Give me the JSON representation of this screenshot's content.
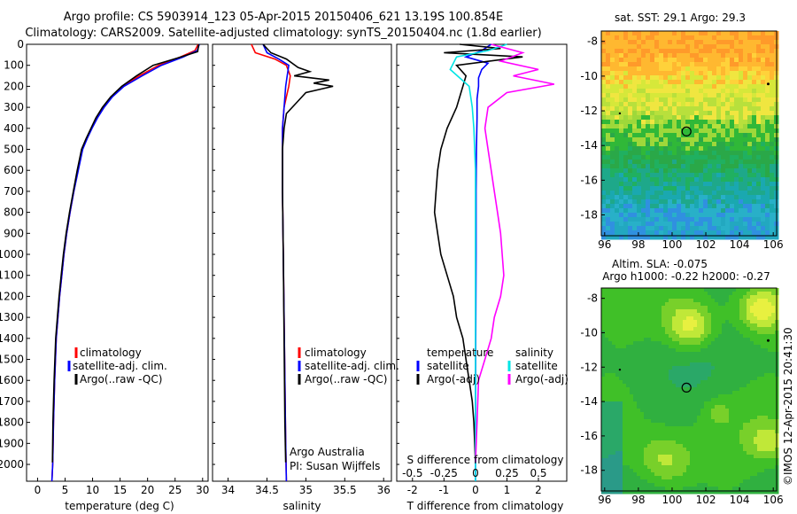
{
  "header": {
    "title_line1": "Argo profile: CS 5903914_123 05-Apr-2015 20150406_621 13.19S 100.854E",
    "title_line2": "Climatology: CARS2009. Satellite-adjusted climatology: synTS_20150404.nc (1.8d earlier)"
  },
  "colors": {
    "climatology": "#ff0000",
    "satellite_adj": "#0000ff",
    "argo": "#000000",
    "salinity_satellite": "#00e5e5",
    "salinity_argo": "#ff00ff"
  },
  "chart_data": [
    {
      "type": "line",
      "name": "temperature profile",
      "xlabel": "temperature (deg C)",
      "xlim": [
        -2,
        31
      ],
      "ylim": [
        2080,
        0
      ],
      "x_ticks": [
        0,
        5,
        10,
        15,
        20,
        25,
        30
      ],
      "y_ticks": [
        0,
        100,
        200,
        300,
        400,
        500,
        600,
        700,
        800,
        900,
        1000,
        1100,
        1200,
        1300,
        1400,
        1500,
        1600,
        1700,
        1800,
        1900,
        2000
      ],
      "legend": [
        "climatology",
        "satellite-adj. clim.",
        "Argo(..raw -QC)"
      ],
      "series": [
        {
          "name": "climatology",
          "x": [
            29.2,
            28.6,
            26,
            22,
            18.5,
            15.5,
            13.5,
            12,
            10.8,
            9.8,
            8.9,
            8.1,
            7.3,
            6.6,
            5.9,
            5.3,
            4.8,
            4.4,
            4.0,
            3.7,
            3.4,
            3.1,
            2.9,
            2.75,
            2.6
          ],
          "y": [
            0,
            30,
            60,
            100,
            150,
            200,
            250,
            300,
            350,
            400,
            450,
            500,
            600,
            700,
            800,
            900,
            1000,
            1100,
            1200,
            1300,
            1400,
            1600,
            1800,
            2000,
            2080
          ]
        },
        {
          "name": "satellite-adj. clim.",
          "x": [
            29.4,
            29.0,
            26.5,
            22.5,
            19,
            15.7,
            13.6,
            12.1,
            10.9,
            9.9,
            9.0,
            8.2,
            7.4,
            6.6,
            5.9,
            5.3,
            4.8,
            4.4,
            4.0,
            3.7,
            3.4,
            3.1,
            2.9,
            2.75,
            2.6
          ],
          "y": [
            0,
            30,
            60,
            100,
            150,
            200,
            250,
            300,
            350,
            400,
            450,
            500,
            600,
            700,
            800,
            900,
            1000,
            1100,
            1200,
            1300,
            1400,
            1600,
            1800,
            2000,
            2080
          ]
        },
        {
          "name": "Argo(..raw -QC)",
          "x": [
            29.3,
            29.1,
            25.5,
            21,
            18,
            15.3,
            13.3,
            11.8,
            10.6,
            9.7,
            8.8,
            8.0,
            7.2,
            6.5,
            5.8,
            5.2,
            4.7,
            4.3,
            3.9,
            3.6,
            3.3,
            3.0,
            2.8,
            2.7
          ],
          "y": [
            0,
            35,
            65,
            100,
            150,
            200,
            250,
            300,
            350,
            400,
            450,
            500,
            600,
            700,
            800,
            900,
            1000,
            1100,
            1200,
            1300,
            1400,
            1600,
            1800,
            1990
          ]
        }
      ]
    },
    {
      "type": "line",
      "name": "salinity profile",
      "xlabel": "salinity",
      "xlim": [
        33.8,
        36.1
      ],
      "ylim": [
        2080,
        0
      ],
      "x_ticks": [
        34,
        34.5,
        35,
        35.5,
        36
      ],
      "legend": [
        "climatology",
        "satellite-adj. clim.",
        "Argo(..raw -QC)"
      ],
      "annotations": [
        "Argo Australia",
        "PI: Susan Wijffels"
      ],
      "series": [
        {
          "name": "climatology",
          "x": [
            34.3,
            34.35,
            34.6,
            34.75,
            34.8,
            34.78,
            34.75,
            34.72,
            34.7,
            34.7,
            34.7,
            34.71,
            34.72,
            34.73,
            34.74,
            34.75
          ],
          "y": [
            0,
            40,
            70,
            100,
            150,
            200,
            250,
            300,
            400,
            500,
            700,
            1000,
            1300,
            1600,
            1900,
            2080
          ]
        },
        {
          "name": "satellite-adj. clim.",
          "x": [
            34.45,
            34.5,
            34.65,
            34.78,
            34.76,
            34.74,
            34.73,
            34.72,
            34.7,
            34.7,
            34.7,
            34.71,
            34.72,
            34.73,
            34.74,
            34.75
          ],
          "y": [
            0,
            40,
            70,
            100,
            150,
            200,
            250,
            300,
            400,
            500,
            700,
            1000,
            1300,
            1600,
            1900,
            2080
          ]
        },
        {
          "name": "Argo(..raw -QC)",
          "x": [
            34.45,
            34.55,
            34.75,
            34.9,
            35.05,
            34.85,
            35.3,
            35.1,
            35.35,
            35.0,
            34.9,
            34.75,
            34.72,
            34.7,
            34.7,
            34.71,
            34.72,
            34.73,
            34.74
          ],
          "y": [
            0,
            40,
            70,
            110,
            130,
            150,
            170,
            185,
            200,
            230,
            270,
            330,
            400,
            500,
            700,
            1000,
            1400,
            1800,
            1990
          ]
        }
      ]
    },
    {
      "type": "line",
      "name": "difference from climatology",
      "xlabel_top": "S difference from climatology",
      "xlabel": "T difference from climatology",
      "top_ticks": [
        "-0.5",
        "-0.25",
        "0",
        "0.25",
        "0.5"
      ],
      "bottom_ticks": [
        "-2",
        "-1",
        "0",
        "1",
        "2"
      ],
      "xlim": [
        -2.5,
        2.9
      ],
      "ylim": [
        2080,
        0
      ],
      "legend_headers": [
        "temperature",
        "salinity"
      ],
      "legend": [
        "satellite",
        "Argo(-adj)",
        "satellite",
        "Argo(-adj)"
      ],
      "series": [
        {
          "name": "temperature satellite",
          "x": [
            0.5,
            0.2,
            -0.3,
            0.4,
            0.2,
            0.1,
            0.1,
            0.05,
            0.05,
            0.03,
            0.02,
            0.02,
            0.01,
            0.0,
            0.0
          ],
          "y": [
            0,
            30,
            60,
            90,
            120,
            160,
            200,
            260,
            350,
            500,
            700,
            1000,
            1400,
            1800,
            2080
          ]
        },
        {
          "name": "temperature Argo(-adj)",
          "x": [
            -0.5,
            0.8,
            -1.0,
            1.5,
            -0.6,
            -0.3,
            -0.4,
            -0.6,
            -0.9,
            -1.1,
            -1.2,
            -1.25,
            -1.3,
            -1.2,
            -1.1,
            -0.9,
            -0.7,
            -0.6,
            -0.4,
            -0.3,
            -0.2,
            -0.1,
            -0.05,
            0.0
          ],
          "y": [
            0,
            20,
            40,
            60,
            100,
            150,
            200,
            300,
            400,
            500,
            600,
            700,
            800,
            900,
            1000,
            1100,
            1200,
            1300,
            1400,
            1500,
            1600,
            1700,
            1800,
            1990
          ]
        },
        {
          "name": "salinity satellite",
          "x": [
            1.0,
            0.4,
            -0.6,
            -0.8,
            -0.2,
            -0.1,
            -0.05,
            0.0,
            0.0,
            0.0,
            0.0
          ],
          "y": [
            0,
            30,
            60,
            120,
            200,
            300,
            400,
            600,
            900,
            1400,
            2080
          ]
        },
        {
          "name": "salinity Argo(-adj)",
          "x": [
            0.5,
            1.5,
            0.8,
            2.0,
            1.2,
            2.5,
            1.0,
            0.4,
            0.3,
            0.4,
            0.5,
            0.6,
            0.7,
            0.8,
            0.85,
            0.9,
            0.8,
            0.6,
            0.5,
            0.3,
            0.1,
            0.05,
            0.0
          ],
          "y": [
            0,
            40,
            80,
            120,
            150,
            190,
            230,
            300,
            400,
            500,
            600,
            700,
            800,
            900,
            1000,
            1100,
            1200,
            1300,
            1400,
            1500,
            1600,
            1800,
            1990
          ]
        }
      ]
    },
    {
      "type": "heatmap",
      "name": "satellite SST map",
      "title": "sat. SST: 29.1  Argo: 29.3",
      "x_ticks": [
        96,
        98,
        100,
        102,
        104,
        106
      ],
      "y_ticks": [
        -8,
        -10,
        -12,
        -14,
        -16,
        -18
      ],
      "xlim": [
        95.8,
        106.2
      ],
      "ylim": [
        -19.2,
        -7.4
      ],
      "marker": {
        "lon": 100.854,
        "lat": -13.19
      }
    },
    {
      "type": "heatmap",
      "name": "altimetry SLA map",
      "title_line1": "Altim. SLA: -0.075",
      "title_line2": "Argo h1000: -0.22 h2000: -0.27",
      "x_ticks": [
        96,
        98,
        100,
        102,
        104,
        106
      ],
      "y_ticks": [
        -8,
        -10,
        -12,
        -14,
        -16,
        -18
      ],
      "xlim": [
        95.8,
        106.2
      ],
      "ylim": [
        -19.2,
        -7.4
      ],
      "marker": {
        "lon": 100.854,
        "lat": -13.19
      }
    }
  ],
  "footer": {
    "credit": "©IMOS 12-Apr-2015 20:41:30"
  }
}
